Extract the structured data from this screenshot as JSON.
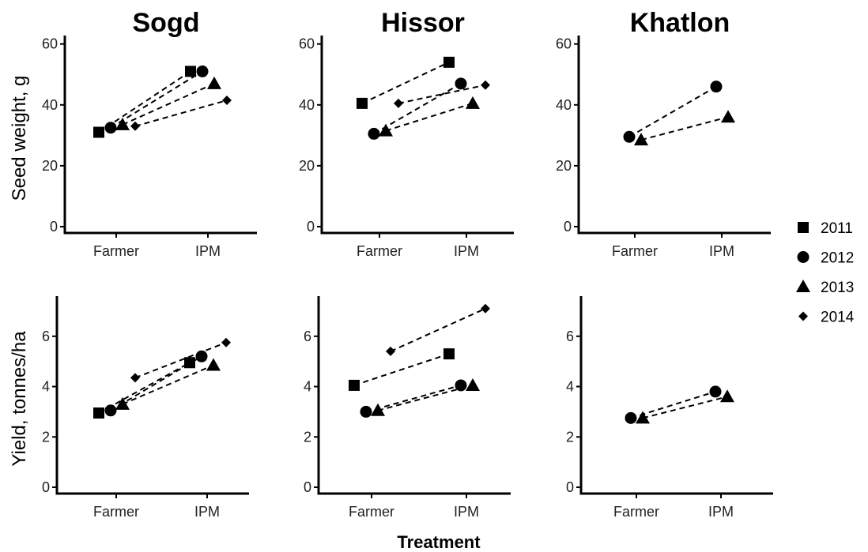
{
  "figure": {
    "x_title": "Treatment",
    "row_ylabels": [
      "Seed weight, g",
      "Yield, tonnes/ha"
    ]
  },
  "legend": {
    "items": [
      {
        "label": "2011",
        "shape": "square"
      },
      {
        "label": "2012",
        "shape": "circle"
      },
      {
        "label": "2013",
        "shape": "triangle"
      },
      {
        "label": "2014",
        "shape": "diamond"
      }
    ]
  },
  "chart_data": [
    {
      "type": "scatter",
      "title": "Sogd",
      "ylabel": "Seed weight, g",
      "categories": [
        "Farmer",
        "IPM"
      ],
      "ylim": [
        0,
        62
      ],
      "yticks": [
        0,
        20,
        40,
        60
      ],
      "series": [
        {
          "name": "2011",
          "values": [
            31,
            51
          ]
        },
        {
          "name": "2012",
          "values": [
            32.5,
            51
          ]
        },
        {
          "name": "2013",
          "values": [
            33.5,
            47
          ]
        },
        {
          "name": "2014",
          "values": [
            33,
            41.5
          ]
        }
      ]
    },
    {
      "type": "scatter",
      "title": "Hissor",
      "ylabel": "Seed weight, g",
      "categories": [
        "Farmer",
        "IPM"
      ],
      "ylim": [
        0,
        62
      ],
      "yticks": [
        0,
        20,
        40,
        60
      ],
      "series": [
        {
          "name": "2011",
          "values": [
            40.5,
            54
          ]
        },
        {
          "name": "2012",
          "values": [
            30.5,
            47
          ]
        },
        {
          "name": "2013",
          "values": [
            31.5,
            40.5
          ]
        },
        {
          "name": "2014",
          "values": [
            40.5,
            46.5
          ]
        }
      ]
    },
    {
      "type": "scatter",
      "title": "Khatlon",
      "ylabel": "Seed weight, g",
      "categories": [
        "Farmer",
        "IPM"
      ],
      "ylim": [
        0,
        62
      ],
      "yticks": [
        0,
        20,
        40,
        60
      ],
      "series": [
        {
          "name": "2012",
          "values": [
            29.5,
            46
          ]
        },
        {
          "name": "2013",
          "values": [
            28.5,
            36
          ]
        }
      ]
    },
    {
      "type": "scatter",
      "title": "",
      "ylabel": "Yield, tonnes/ha",
      "categories": [
        "Farmer",
        "IPM"
      ],
      "ylim": [
        0,
        7.5
      ],
      "yticks": [
        0,
        2,
        4,
        6
      ],
      "series": [
        {
          "name": "2011",
          "values": [
            2.95,
            4.95
          ]
        },
        {
          "name": "2012",
          "values": [
            3.05,
            5.2
          ]
        },
        {
          "name": "2013",
          "values": [
            3.3,
            4.85
          ]
        },
        {
          "name": "2014",
          "values": [
            4.35,
            5.75
          ]
        }
      ]
    },
    {
      "type": "scatter",
      "title": "",
      "ylabel": "Yield, tonnes/ha",
      "categories": [
        "Farmer",
        "IPM"
      ],
      "ylim": [
        0,
        7.5
      ],
      "yticks": [
        0,
        2,
        4,
        6
      ],
      "series": [
        {
          "name": "2011",
          "values": [
            4.05,
            5.3
          ]
        },
        {
          "name": "2012",
          "values": [
            3.0,
            4.05
          ]
        },
        {
          "name": "2013",
          "values": [
            3.05,
            4.05
          ]
        },
        {
          "name": "2014",
          "values": [
            5.4,
            7.1
          ]
        }
      ]
    },
    {
      "type": "scatter",
      "title": "",
      "ylabel": "Yield, tonnes/ha",
      "categories": [
        "Farmer",
        "IPM"
      ],
      "ylim": [
        0,
        7.5
      ],
      "yticks": [
        0,
        2,
        4,
        6
      ],
      "series": [
        {
          "name": "2012",
          "values": [
            2.75,
            3.8
          ]
        },
        {
          "name": "2013",
          "values": [
            2.75,
            3.6
          ]
        }
      ]
    }
  ]
}
